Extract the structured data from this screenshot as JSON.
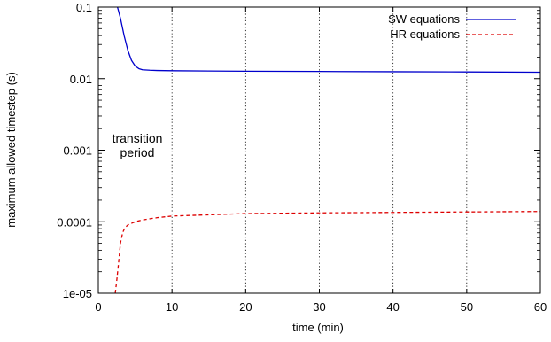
{
  "chart_data": {
    "type": "line",
    "title": "",
    "xlabel": "time (min)",
    "ylabel": "maximum allowed timestep (s)",
    "xlim": [
      0,
      60
    ],
    "ylim": [
      1e-05,
      0.1
    ],
    "yscale": "log",
    "x_ticks": [
      0,
      10,
      20,
      30,
      40,
      50,
      60
    ],
    "x_tick_labels": [
      "0",
      "10",
      "20",
      "30",
      "40",
      "50",
      "60"
    ],
    "y_ticks": [
      0.1,
      0.01,
      0.001,
      0.0001,
      1e-05
    ],
    "y_tick_labels": [
      "0.1",
      "0.01",
      "0.001",
      "0.0001",
      "1e-05"
    ],
    "grid": "vertical dotted lines at x ticks",
    "legend_position": "top-right",
    "annotation": [
      "transition",
      "period"
    ],
    "series": [
      {
        "name": "SW equations",
        "color": "#0000cc",
        "style": "solid",
        "x": [
          2.6,
          3.0,
          3.5,
          4.0,
          4.5,
          5.0,
          5.5,
          6.0,
          7.0,
          8.0,
          10.0,
          15.0,
          20.0,
          30.0,
          40.0,
          50.0,
          60.0
        ],
        "y": [
          0.1,
          0.07,
          0.04,
          0.025,
          0.018,
          0.015,
          0.0138,
          0.0133,
          0.0131,
          0.013,
          0.0129,
          0.0128,
          0.0127,
          0.0126,
          0.0125,
          0.0124,
          0.0123
        ]
      },
      {
        "name": "HR equations",
        "color": "#dd0000",
        "style": "dashed",
        "x": [
          2.3,
          2.5,
          2.8,
          3.0,
          3.3,
          3.6,
          4.0,
          4.5,
          5.0,
          6.0,
          7.0,
          8.0,
          10.0,
          15.0,
          20.0,
          30.0,
          40.0,
          50.0,
          60.0
        ],
        "y": [
          1e-05,
          1.5e-05,
          3e-05,
          5e-05,
          7e-05,
          8.2e-05,
          9e-05,
          9.5e-05,
          0.0001,
          0.000106,
          0.00011,
          0.000114,
          0.00012,
          0.000125,
          0.00013,
          0.000133,
          0.000135,
          0.000137,
          0.000139
        ]
      }
    ]
  }
}
